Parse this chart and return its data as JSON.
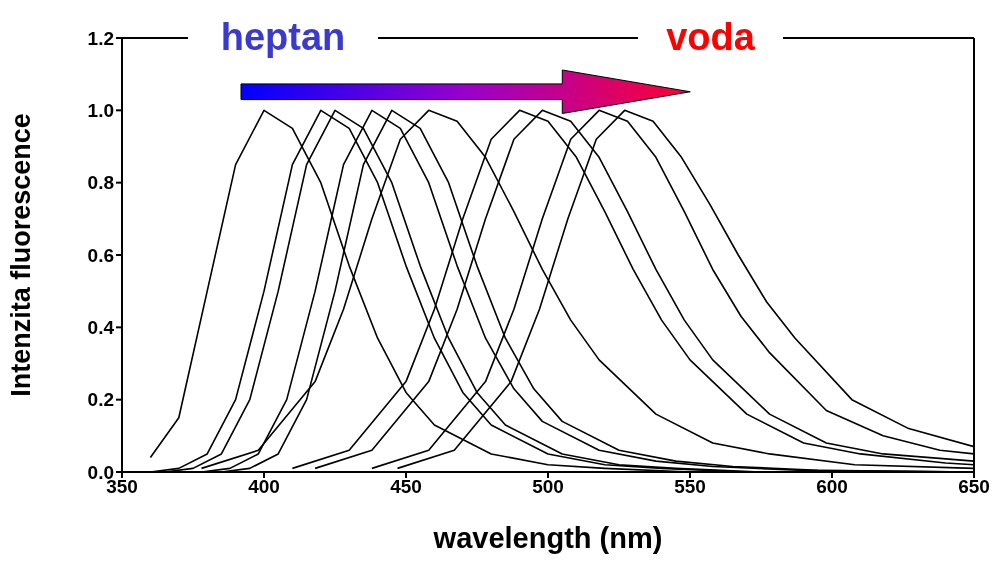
{
  "chart_data": {
    "type": "line",
    "xlabel": "wavelength  (nm)",
    "ylabel": "Intenzita fluorescence",
    "xlim": [
      350,
      650
    ],
    "ylim": [
      0,
      1.2
    ],
    "xticks": [
      350,
      400,
      450,
      500,
      550,
      600,
      650
    ],
    "yticks": [
      {
        "value": 0,
        "label": "0.0"
      },
      0.2,
      0.4,
      0.6,
      0.8,
      {
        "value": 1,
        "label": "1.0"
      },
      1.2
    ],
    "legend": false,
    "marker": "none",
    "line_style": "solid",
    "annotations": [
      "heptan",
      "voda"
    ],
    "series": [
      {
        "color": "#000000",
        "x": [
          360,
          370,
          380,
          390,
          400,
          410,
          420,
          430,
          440,
          450,
          460,
          480,
          500,
          520,
          550,
          650
        ],
        "values": [
          0.04,
          0.15,
          0.5,
          0.85,
          1,
          0.95,
          0.8,
          0.57,
          0.37,
          0.22,
          0.13,
          0.05,
          0.02,
          0.01,
          0,
          0
        ]
      },
      {
        "color": "#000000",
        "x": [
          360,
          370,
          380,
          390,
          400,
          410,
          420,
          430,
          440,
          450,
          460,
          470,
          480,
          500,
          520,
          540,
          570,
          650
        ],
        "values": [
          0,
          0.01,
          0.05,
          0.2,
          0.5,
          0.85,
          1,
          0.95,
          0.8,
          0.57,
          0.37,
          0.22,
          0.13,
          0.05,
          0.02,
          0.01,
          0,
          0
        ]
      },
      {
        "color": "#000000",
        "x": [
          365,
          375,
          385,
          395,
          405,
          415,
          425,
          435,
          445,
          455,
          465,
          475,
          485,
          505,
          525,
          545,
          575,
          650
        ],
        "values": [
          0,
          0.01,
          0.05,
          0.2,
          0.5,
          0.85,
          1,
          0.95,
          0.8,
          0.57,
          0.37,
          0.22,
          0.13,
          0.05,
          0.02,
          0.01,
          0,
          0
        ]
      },
      {
        "color": "#000000",
        "x": [
          378,
          388,
          398,
          408,
          418,
          428,
          438,
          448,
          458,
          468,
          478,
          488,
          498,
          518,
          538,
          558,
          588,
          650
        ],
        "values": [
          0,
          0.01,
          0.05,
          0.2,
          0.5,
          0.85,
          1,
          0.95,
          0.8,
          0.57,
          0.37,
          0.23,
          0.14,
          0.06,
          0.03,
          0.015,
          0.005,
          0
        ]
      },
      {
        "color": "#000000",
        "x": [
          385,
          395,
          405,
          415,
          425,
          435,
          445,
          455,
          465,
          475,
          485,
          495,
          505,
          525,
          545,
          565,
          595,
          650
        ],
        "values": [
          0,
          0.01,
          0.05,
          0.2,
          0.5,
          0.85,
          1,
          0.95,
          0.8,
          0.57,
          0.37,
          0.23,
          0.14,
          0.06,
          0.03,
          0.015,
          0.005,
          0
        ]
      },
      {
        "color": "#000000",
        "x": [
          378,
          398,
          418,
          428,
          438,
          448,
          458,
          468,
          478,
          488,
          498,
          508,
          518,
          538,
          558,
          578,
          608,
          650
        ],
        "values": [
          0.01,
          0.06,
          0.25,
          0.45,
          0.7,
          0.92,
          1,
          0.97,
          0.87,
          0.72,
          0.56,
          0.42,
          0.31,
          0.16,
          0.08,
          0.05,
          0.02,
          0.01
        ]
      },
      {
        "color": "#000000",
        "x": [
          410,
          430,
          450,
          460,
          470,
          480,
          490,
          500,
          510,
          520,
          530,
          540,
          550,
          570,
          590,
          610,
          640,
          650
        ],
        "values": [
          0.01,
          0.06,
          0.25,
          0.45,
          0.7,
          0.92,
          1,
          0.97,
          0.87,
          0.72,
          0.56,
          0.42,
          0.31,
          0.16,
          0.08,
          0.05,
          0.025,
          0.02
        ]
      },
      {
        "color": "#000000",
        "x": [
          418,
          438,
          458,
          468,
          478,
          488,
          498,
          508,
          518,
          528,
          538,
          548,
          558,
          578,
          598,
          618,
          650
        ],
        "values": [
          0.01,
          0.06,
          0.25,
          0.45,
          0.7,
          0.92,
          1,
          0.97,
          0.87,
          0.72,
          0.56,
          0.42,
          0.31,
          0.16,
          0.08,
          0.05,
          0.03
        ]
      },
      {
        "color": "#000000",
        "x": [
          438,
          458,
          478,
          488,
          498,
          508,
          518,
          528,
          538,
          548,
          558,
          568,
          578,
          598,
          618,
          638,
          650
        ],
        "values": [
          0.01,
          0.06,
          0.25,
          0.45,
          0.7,
          0.92,
          1,
          0.97,
          0.87,
          0.72,
          0.56,
          0.43,
          0.33,
          0.17,
          0.1,
          0.06,
          0.05
        ]
      },
      {
        "color": "#000000",
        "x": [
          447,
          467,
          487,
          497,
          507,
          517,
          527,
          537,
          547,
          557,
          567,
          577,
          587,
          607,
          627,
          650
        ],
        "values": [
          0.01,
          0.06,
          0.25,
          0.45,
          0.7,
          0.92,
          1,
          0.97,
          0.87,
          0.74,
          0.6,
          0.47,
          0.37,
          0.2,
          0.12,
          0.07
        ]
      }
    ]
  }
}
